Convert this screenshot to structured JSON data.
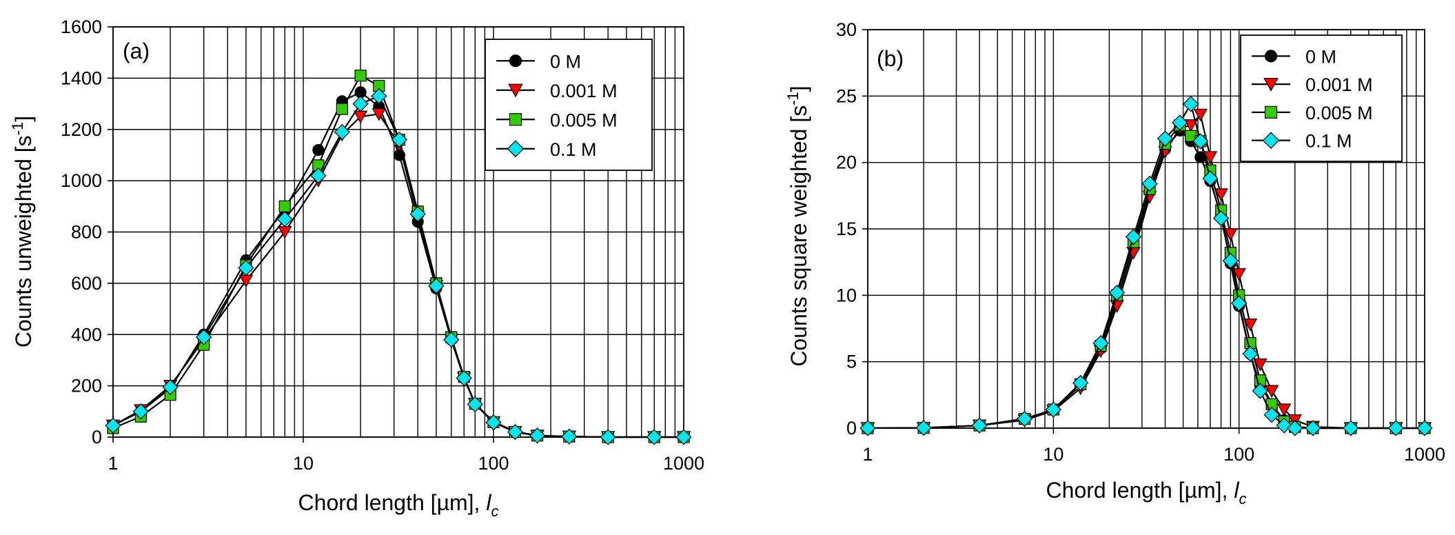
{
  "chart_data": [
    {
      "type": "scatter",
      "panel_label": "(a)",
      "xlabel": "Chord length [µm], ",
      "xlabel_italic": "l",
      "xlabel_sub": "c",
      "ylabel": "Counts unweighted [s",
      "ylabel_sup": "-1",
      "ylabel_close": "]",
      "xscale": "log",
      "xlim": [
        1,
        1000
      ],
      "ylim": [
        0,
        1600
      ],
      "grid": true,
      "legend_position": "top-right",
      "xticks": [
        "1",
        "10",
        "100",
        "1000"
      ],
      "yticks": [
        "0",
        "200",
        "400",
        "600",
        "800",
        "1000",
        "1200",
        "1400",
        "1600"
      ],
      "x": [
        1.0,
        1.4,
        2.0,
        3.0,
        5.0,
        8.0,
        12.0,
        16.0,
        20.0,
        25.0,
        32.0,
        40.0,
        50.0,
        60.0,
        70.0,
        80.0,
        100.0,
        130.0,
        170.0,
        250.0,
        400.0,
        700.0,
        1000.0
      ],
      "series": [
        {
          "name": "0 M",
          "marker": "circle",
          "color": "#000000",
          "values": [
            45,
            100,
            190,
            400,
            690,
            890,
            1120,
            1310,
            1345,
            1290,
            1100,
            840,
            580,
            380,
            230,
            130,
            60,
            22,
            6,
            2,
            0,
            0,
            0
          ]
        },
        {
          "name": "0.001 M",
          "marker": "triangle-down",
          "color": "#ff0000",
          "values": [
            45,
            105,
            200,
            380,
            610,
            800,
            1000,
            1180,
            1250,
            1260,
            1140,
            860,
            590,
            380,
            230,
            130,
            58,
            20,
            5,
            2,
            0,
            0,
            0
          ]
        },
        {
          "name": "0.005 M",
          "marker": "square",
          "color": "#33cc00",
          "values": [
            35,
            80,
            165,
            360,
            670,
            900,
            1060,
            1280,
            1410,
            1370,
            1160,
            880,
            600,
            390,
            235,
            130,
            58,
            20,
            6,
            2,
            0,
            0,
            0
          ]
        },
        {
          "name": "0.1 M",
          "marker": "diamond",
          "color": "#00e5ee",
          "values": [
            45,
            100,
            195,
            390,
            660,
            850,
            1020,
            1190,
            1300,
            1330,
            1160,
            870,
            590,
            380,
            230,
            128,
            57,
            20,
            6,
            2,
            0,
            0,
            0
          ]
        }
      ]
    },
    {
      "type": "scatter",
      "panel_label": "(b)",
      "xlabel": "Chord length [µm], ",
      "xlabel_italic": "l",
      "xlabel_sub": "c",
      "ylabel": "Counts square weighted [s",
      "ylabel_sup": "-1",
      "ylabel_close": "]",
      "xscale": "log",
      "xlim": [
        1,
        1000
      ],
      "ylim": [
        0,
        30
      ],
      "grid": true,
      "legend_position": "top-right",
      "xticks": [
        "1",
        "10",
        "100",
        "1000"
      ],
      "yticks": [
        "0",
        "5",
        "10",
        "15",
        "20",
        "25",
        "30"
      ],
      "x": [
        1.0,
        2.0,
        4.0,
        7.0,
        10.0,
        14.0,
        18.0,
        22.0,
        27.0,
        33.0,
        40.0,
        48.0,
        55.0,
        62.0,
        70.0,
        80.0,
        90.0,
        100.0,
        115.0,
        130.0,
        150.0,
        175.0,
        200.0,
        250.0,
        400.0,
        700.0,
        1000.0
      ],
      "series": [
        {
          "name": "0 M",
          "marker": "circle",
          "color": "#000000",
          "values": [
            0,
            0.02,
            0.2,
            0.7,
            1.4,
            3.2,
            6.0,
            9.6,
            13.6,
            17.8,
            21.0,
            22.4,
            21.6,
            20.4,
            18.6,
            16.0,
            12.4,
            9.2,
            5.6,
            3.2,
            1.8,
            0.6,
            0.1,
            0,
            0,
            0,
            0
          ]
        },
        {
          "name": "0.001 M",
          "marker": "triangle-down",
          "color": "#ff0000",
          "values": [
            0,
            0.02,
            0.2,
            0.6,
            1.3,
            3.0,
            5.8,
            9.2,
            13.2,
            17.4,
            20.8,
            22.6,
            22.8,
            23.6,
            20.4,
            17.6,
            14.6,
            11.6,
            7.8,
            4.8,
            2.8,
            1.4,
            0.6,
            0.1,
            0,
            0,
            0
          ]
        },
        {
          "name": "0.005 M",
          "marker": "square",
          "color": "#33cc00",
          "values": [
            0,
            0.02,
            0.2,
            0.7,
            1.4,
            3.3,
            6.2,
            10.0,
            14.0,
            18.0,
            21.4,
            22.8,
            22.0,
            21.6,
            19.4,
            16.4,
            13.2,
            10.0,
            6.4,
            3.6,
            1.8,
            0.5,
            0.1,
            0,
            0,
            0,
            0
          ]
        },
        {
          "name": "0.1 M",
          "marker": "diamond",
          "color": "#00e5ee",
          "values": [
            0,
            0.02,
            0.2,
            0.7,
            1.4,
            3.4,
            6.4,
            10.2,
            14.4,
            18.4,
            21.8,
            23.0,
            24.4,
            21.6,
            18.8,
            15.8,
            12.6,
            9.4,
            5.6,
            2.8,
            1.0,
            0.2,
            0,
            0,
            0,
            0,
            0
          ]
        }
      ]
    }
  ]
}
